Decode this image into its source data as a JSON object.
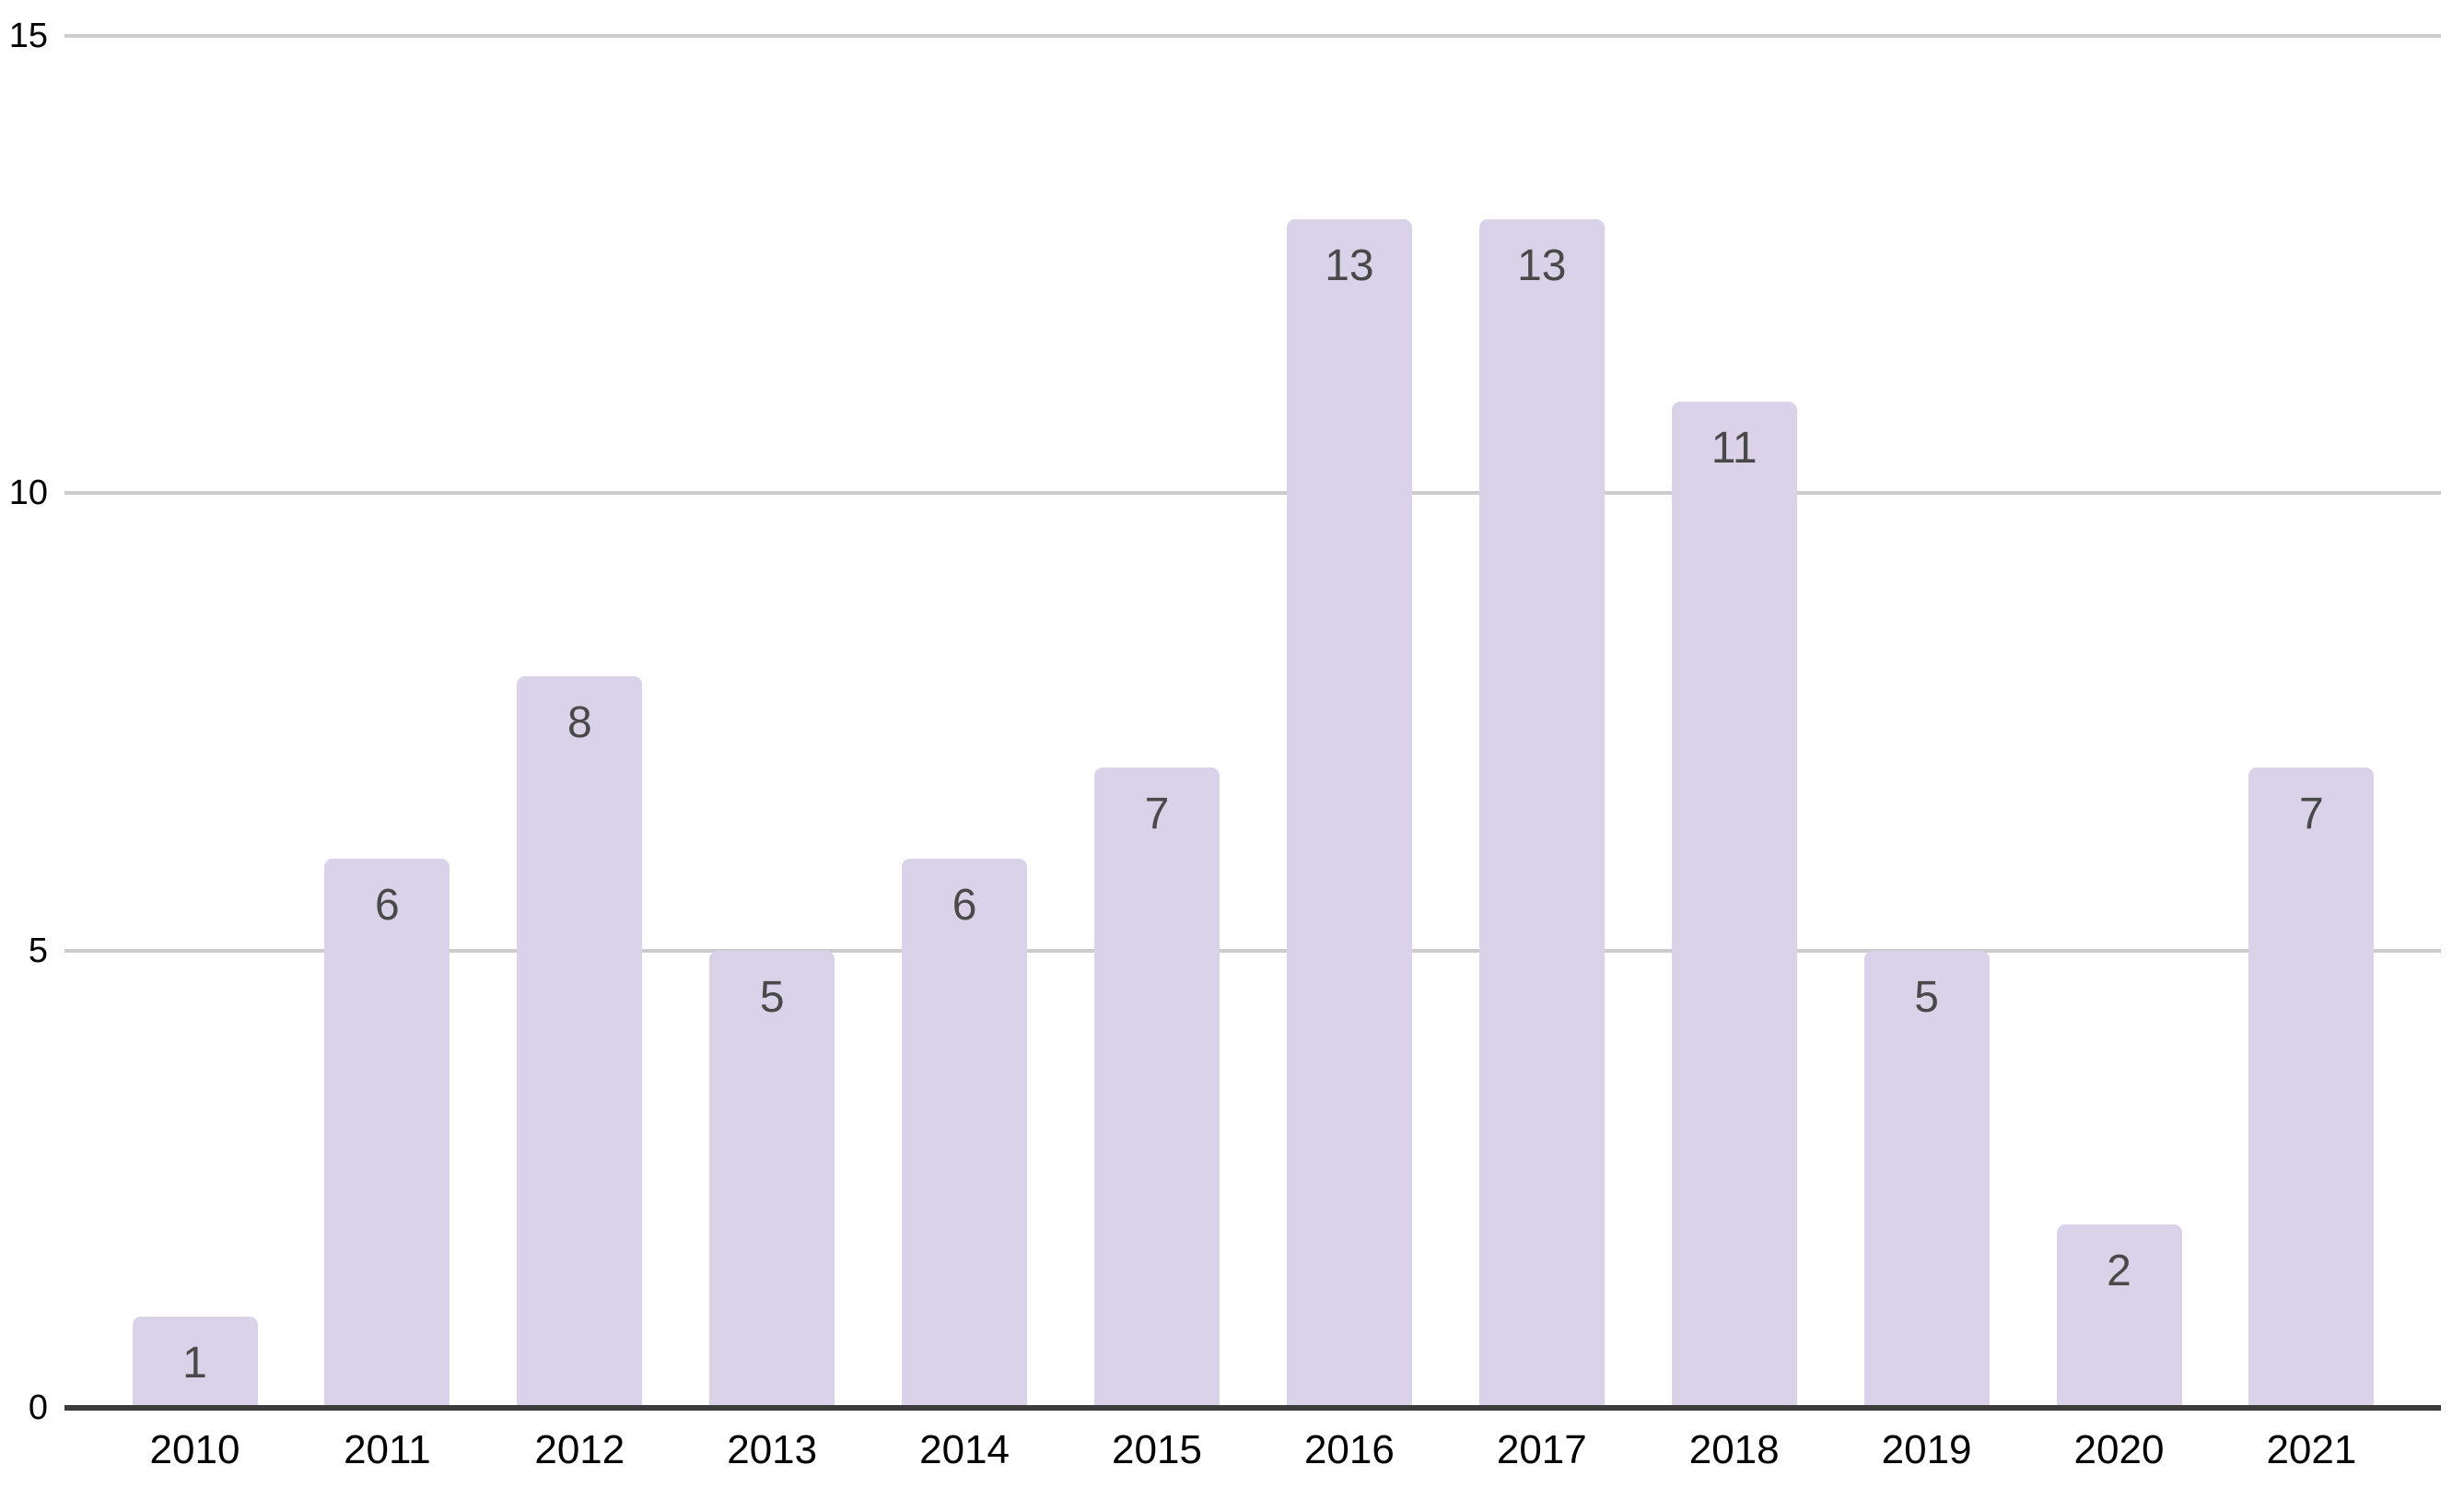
{
  "chart_data": {
    "type": "bar",
    "title": "",
    "xlabel": "",
    "ylabel": "",
    "categories": [
      "2010",
      "2011",
      "2012",
      "2013",
      "2014",
      "2015",
      "2016",
      "2017",
      "2018",
      "2019",
      "2020",
      "2021"
    ],
    "values": [
      1,
      6,
      8,
      5,
      6,
      7,
      13,
      13,
      11,
      5,
      2,
      7
    ],
    "value_labels": [
      "1",
      "6",
      "8",
      "5",
      "6",
      "7",
      "13",
      "13",
      "11",
      "5",
      "2",
      "7"
    ],
    "ylim": [
      0,
      15
    ],
    "yticks": [
      0,
      5,
      10,
      15
    ],
    "ytick_labels": [
      "0",
      "5",
      "10",
      "15"
    ],
    "grid": true,
    "legend_position": "none",
    "colors": {
      "bar_fill": "#d9d2e9",
      "value_label": "#494949",
      "gridline": "#cccccc",
      "axis_line": "#3b3b3b",
      "tick_label": "#000000",
      "background": "#ffffff"
    }
  }
}
